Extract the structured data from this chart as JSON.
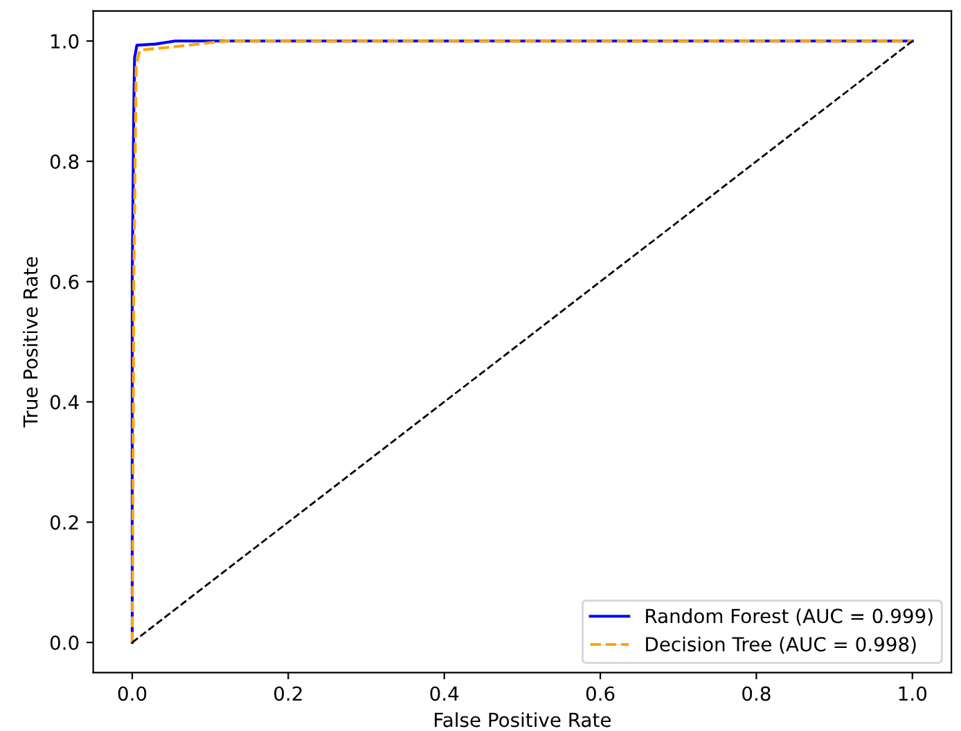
{
  "chart_data": {
    "type": "line",
    "xlabel": "False Positive Rate",
    "ylabel": "True Positive Rate",
    "xlim": [
      -0.05,
      1.05
    ],
    "ylim": [
      -0.05,
      1.05
    ],
    "xticks": [
      {
        "value": 0,
        "label": "0.0"
      },
      0.2,
      0.4,
      0.6,
      0.8,
      {
        "value": 1,
        "label": "1.0"
      }
    ],
    "yticks": [
      {
        "value": 0,
        "label": "0.0"
      },
      0.2,
      0.4,
      0.6,
      0.8,
      {
        "value": 1,
        "label": "1.0"
      }
    ],
    "legend": "bottom right",
    "grid": false,
    "series": [
      {
        "name": "Random Forest (AUC = 0.999)",
        "color": "#0000ff",
        "line_style": "solid",
        "x": [
          0,
          0,
          0.002,
          0.003,
          0.006,
          0.03,
          0.055,
          1.0
        ],
        "values": [
          0,
          0.6,
          0.886,
          0.972,
          0.993,
          0.995,
          1.0,
          1.0
        ]
      },
      {
        "name": "Decision Tree (AUC = 0.998)",
        "color": "#ffa500",
        "line_style": "dashed",
        "x": [
          0,
          0.002,
          0.005,
          0.01,
          0.05,
          0.12,
          1.0
        ],
        "values": [
          0,
          0.6,
          0.96,
          0.985,
          0.99,
          1.0,
          1.0
        ]
      },
      {
        "color": "#000000",
        "line_style": "dashed",
        "x": [
          0,
          1
        ],
        "values": [
          0,
          1
        ]
      }
    ]
  }
}
